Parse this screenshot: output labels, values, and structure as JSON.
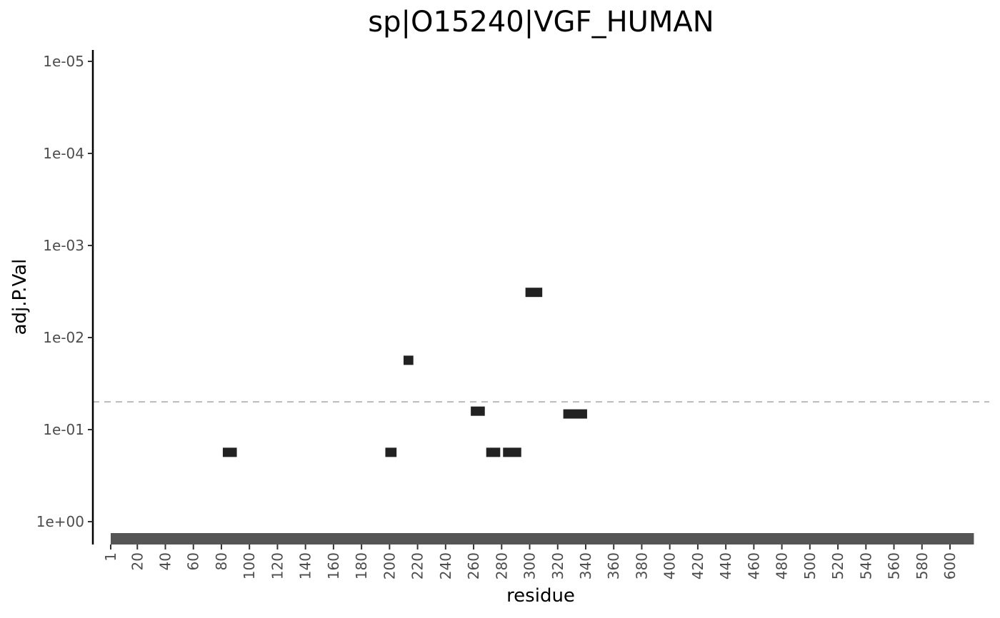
{
  "chart_data": {
    "type": "scatter",
    "title": "sp|O15240|VGF_HUMAN",
    "xlabel": "residue",
    "ylabel": "adj.P.Val",
    "y_scale": "log10-reversed",
    "ylim": [
      1,
      1e-05
    ],
    "xlim": [
      1,
      615
    ],
    "y_ticks": [
      "1e+00",
      "1e-01",
      "1e-02",
      "1e-03",
      "1e-04",
      "1e-05"
    ],
    "y_tick_values": [
      1,
      0.1,
      0.01,
      0.001,
      0.0001,
      1e-05
    ],
    "x_ticks": [
      "1",
      "20",
      "40",
      "60",
      "80",
      "100",
      "120",
      "140",
      "160",
      "180",
      "200",
      "220",
      "240",
      "260",
      "280",
      "300",
      "320",
      "340",
      "360",
      "380",
      "400",
      "420",
      "440",
      "460",
      "480",
      "500",
      "520",
      "540",
      "560",
      "580",
      "600"
    ],
    "x_tick_values": [
      1,
      20,
      40,
      60,
      80,
      100,
      120,
      140,
      160,
      180,
      200,
      220,
      240,
      260,
      280,
      300,
      320,
      340,
      360,
      380,
      400,
      420,
      440,
      460,
      480,
      500,
      520,
      540,
      560,
      580,
      600
    ],
    "threshold": {
      "value": 0.05,
      "style": "dashed",
      "color": "#bbbbbb"
    },
    "protein_bar": {
      "start": 1,
      "end": 615,
      "color": "#555555"
    },
    "peptides": [
      {
        "start": 81,
        "end": 91,
        "p": 0.175
      },
      {
        "start": 210,
        "end": 217,
        "p": 0.0175
      },
      {
        "start": 197,
        "end": 205,
        "p": 0.175
      },
      {
        "start": 258,
        "end": 268,
        "p": 0.0625
      },
      {
        "start": 269,
        "end": 279,
        "p": 0.175
      },
      {
        "start": 281,
        "end": 294,
        "p": 0.175
      },
      {
        "start": 297,
        "end": 309,
        "p": 0.0032
      },
      {
        "start": 324,
        "end": 341,
        "p": 0.067
      }
    ],
    "marker_color": "#222222",
    "grid": false,
    "legend": "none"
  }
}
